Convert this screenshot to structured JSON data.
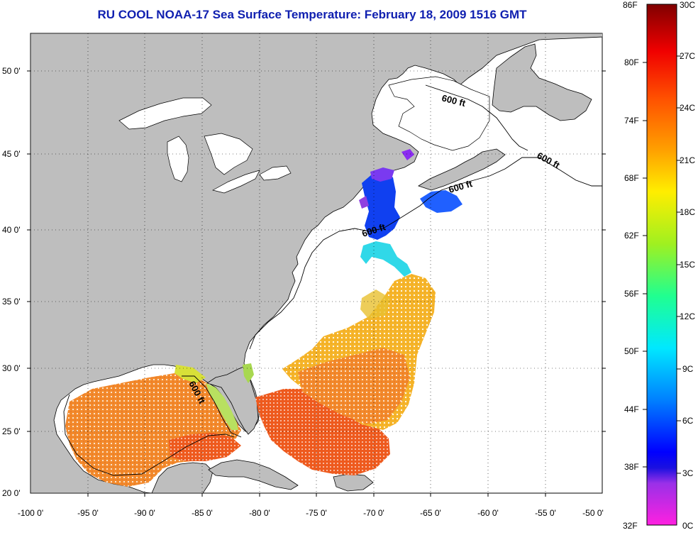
{
  "title": "RU COOL  NOAA-17  Sea Surface Temperature:  February 18, 2009 1516 GMT",
  "map": {
    "lat_ticks": [
      "50 0'",
      "45 0'",
      "40 0'",
      "35 0'",
      "30 0'",
      "25 0'",
      "20 0'"
    ],
    "lon_ticks": [
      "-100 0'",
      "-95 0'",
      "-90 0'",
      "-85 0'",
      "-80 0'",
      "-75 0'",
      "-70 0'",
      "-65 0'",
      "-60 0'",
      "-55 0'",
      "-50 0'"
    ],
    "lat_range": [
      20,
      52.5
    ],
    "lon_range": [
      -100,
      -50
    ],
    "isobath_labels": [
      "600 ft",
      "600 ft",
      "600 ft",
      "600 ft",
      "600 ft"
    ],
    "land_color": "#bebebe",
    "ocean_color": "#ffffff",
    "grid": "dotted"
  },
  "colorbar": {
    "fahrenheit_labels": [
      "86F",
      "80F",
      "74F",
      "68F",
      "62F",
      "56F",
      "50F",
      "44F",
      "38F",
      "32F"
    ],
    "celsius_labels": [
      "30C",
      "27C",
      "24C",
      "21C",
      "18C",
      "15C",
      "12C",
      "9C",
      "6C",
      "3C",
      "0C"
    ],
    "range_c": [
      0,
      30
    ],
    "colors": [
      "#ff00ff",
      "#8000ff",
      "#0000ff",
      "#0080ff",
      "#00ffff",
      "#00ff80",
      "#80ff00",
      "#ffff00",
      "#ffa000",
      "#ff4000",
      "#ff0000",
      "#800000"
    ]
  }
}
